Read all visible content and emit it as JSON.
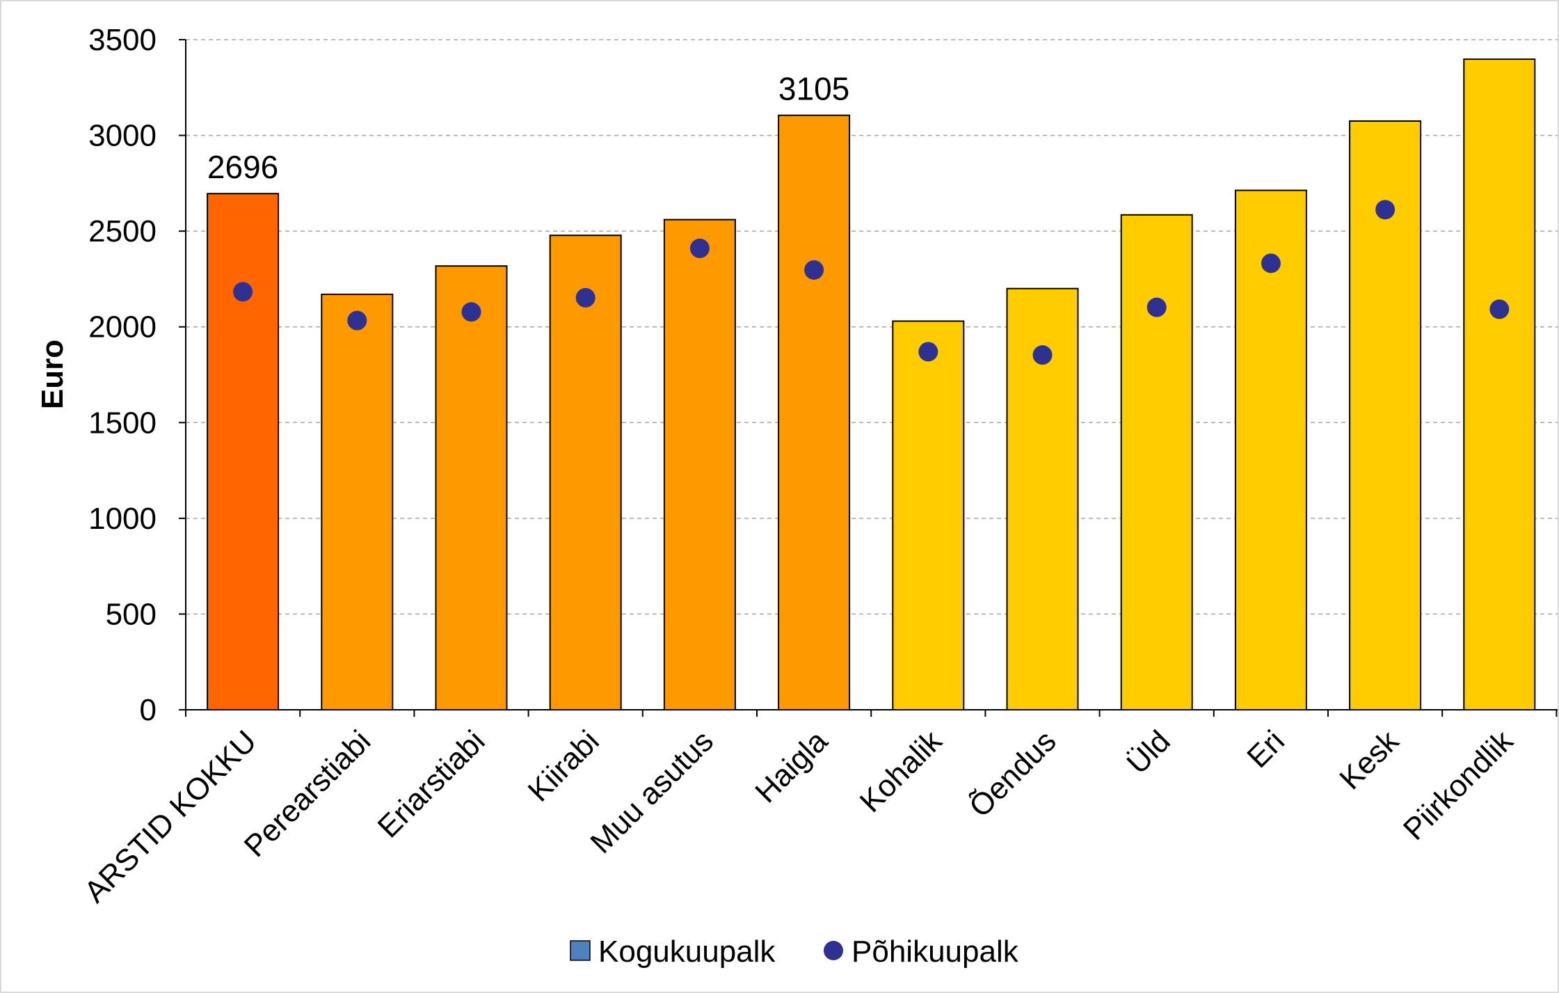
{
  "chart_data": {
    "type": "bar",
    "ylabel": "Euro",
    "ylim": [
      0,
      3500
    ],
    "yticks": [
      0,
      500,
      1000,
      1500,
      2000,
      2500,
      3000,
      3500
    ],
    "grid": true,
    "categories": [
      "ARSTID KOKKU",
      "Perearstiabi",
      "Eriarstiabi",
      "Kiirabi",
      "Muu asutus",
      "Haigla",
      "Kohalik",
      "Õendus",
      "Üld",
      "Eri",
      "Kesk",
      "Piirkondlik"
    ],
    "series": [
      {
        "name": "Kogukuupalk",
        "kind": "bar",
        "values": [
          2696,
          2170,
          2318,
          2478,
          2560,
          3105,
          2030,
          2200,
          2585,
          2713,
          3075,
          3398
        ],
        "data_labels": [
          "2696",
          "",
          "",
          "",
          "",
          "3105",
          "",
          "",
          "",
          "",
          "",
          ""
        ],
        "bar_colors": [
          "#ff6600",
          "#ff9900",
          "#ff9900",
          "#ff9900",
          "#ff9900",
          "#ff9900",
          "#ffcc00",
          "#ffcc00",
          "#ffcc00",
          "#ffcc00",
          "#ffcc00",
          "#ffcc00"
        ]
      },
      {
        "name": "Põhikuupalk",
        "kind": "scatter",
        "values": [
          2183,
          2033,
          2078,
          2152,
          2410,
          2297,
          1870,
          1853,
          2102,
          2332,
          2612,
          2092
        ],
        "color": "#2e3192"
      }
    ],
    "legend": {
      "placement": "bottom",
      "items": [
        {
          "label": "Kogukuupalk",
          "marker": "square",
          "color": "#4f81bd"
        },
        {
          "label": "Põhikuupalk",
          "marker": "circle",
          "color": "#2e3192"
        }
      ]
    }
  }
}
